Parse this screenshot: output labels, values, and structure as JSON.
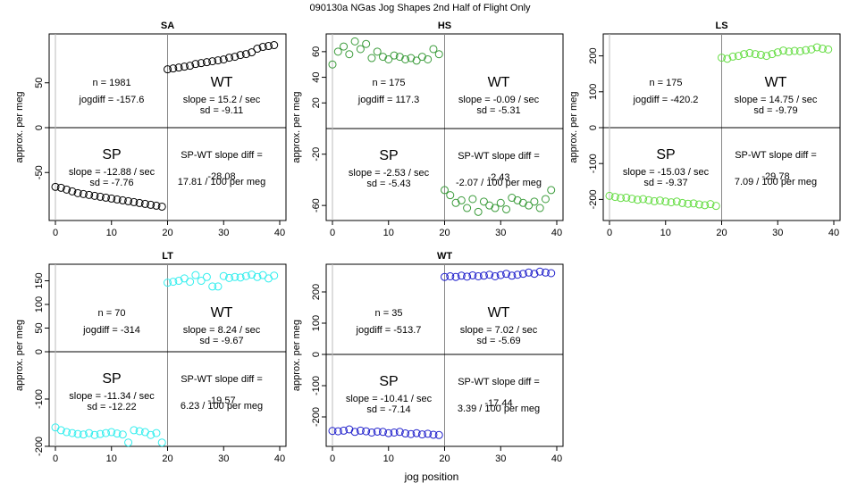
{
  "figure": {
    "title": "090130a   NGas Jog Shapes 2nd Half of Flight Only",
    "xlabel": "jog position"
  },
  "chart_data": [
    {
      "type": "scatter",
      "title": "SA",
      "ylabel": "approx. per meg",
      "color": "#000000",
      "xlim": [
        0,
        40
      ],
      "ylim": [
        -100,
        100
      ],
      "xticks": [
        0,
        10,
        20,
        30,
        40
      ],
      "yticks": [
        -50,
        0,
        50
      ],
      "sp_x": [
        0,
        1,
        2,
        3,
        4,
        5,
        6,
        7,
        8,
        9,
        10,
        11,
        12,
        13,
        14,
        15,
        16,
        17,
        18,
        19
      ],
      "sp_y": [
        -66,
        -67,
        -69,
        -71,
        -73,
        -74,
        -75,
        -76,
        -77,
        -78,
        -79,
        -80,
        -81,
        -82,
        -83,
        -84,
        -85,
        -86,
        -87,
        -88
      ],
      "wt_x": [
        20,
        21,
        22,
        23,
        24,
        25,
        26,
        27,
        28,
        29,
        30,
        31,
        32,
        33,
        34,
        35,
        36,
        37,
        38,
        39
      ],
      "wt_y": [
        65,
        66,
        67,
        68,
        69,
        71,
        72,
        73,
        74,
        75,
        76,
        78,
        79,
        81,
        82,
        84,
        88,
        90,
        91,
        92
      ],
      "annotations": {
        "n": "n = 1981",
        "jogdiff": "jogdiff = -157.6",
        "wt_label": "WT",
        "wt_slope": "slope = 15.2 / sec",
        "wt_sd": "sd = -9.11",
        "sp_label": "SP",
        "sp_slope": "slope = -12.88 / sec",
        "sp_sd": "sd = -7.76",
        "diff_title": "SP-WT slope diff =",
        "diff_value": "-28.08",
        "diff_permeg": "17.81 / 100 per meg"
      }
    },
    {
      "type": "scatter",
      "title": "HS",
      "ylabel": "approx. per meg",
      "color": "#3a9b3a",
      "xlim": [
        0,
        40
      ],
      "ylim": [
        -70,
        70
      ],
      "xticks": [
        0,
        10,
        20,
        30,
        40
      ],
      "yticks": [
        -60,
        -20,
        20,
        40,
        60
      ],
      "sp_x": [
        0,
        1,
        2,
        3,
        4,
        5,
        6,
        7,
        8,
        9,
        10,
        11,
        12,
        13,
        14,
        15,
        16,
        17,
        18,
        19
      ],
      "sp_y": [
        50,
        60,
        64,
        58,
        68,
        62,
        66,
        55,
        60,
        56,
        54,
        57,
        56,
        54,
        55,
        53,
        56,
        54,
        62,
        58
      ],
      "wt_x": [
        20,
        21,
        22,
        23,
        24,
        25,
        26,
        27,
        28,
        29,
        30,
        31,
        32,
        33,
        34,
        35,
        36,
        37,
        38,
        39
      ],
      "wt_y": [
        -48,
        -52,
        -58,
        -56,
        -62,
        -55,
        -65,
        -57,
        -60,
        -62,
        -58,
        -63,
        -54,
        -56,
        -58,
        -60,
        -57,
        -62,
        -55,
        -48
      ],
      "annotations": {
        "n": "n = 175",
        "jogdiff": "jogdiff = 117.3",
        "wt_label": "WT",
        "wt_slope": "slope = -0.09 / sec",
        "wt_sd": "sd = -5.31",
        "sp_label": "SP",
        "sp_slope": "slope = -2.53 / sec",
        "sp_sd": "sd = -5.43",
        "diff_title": "SP-WT slope diff =",
        "diff_value": "-2.43",
        "diff_permeg": "-2.07 / 100 per meg"
      }
    },
    {
      "type": "scatter",
      "title": "LS",
      "ylabel": "approx. per meg",
      "color": "#66dd44",
      "xlim": [
        0,
        40
      ],
      "ylim": [
        -250,
        250
      ],
      "xticks": [
        0,
        10,
        20,
        30,
        40
      ],
      "yticks": [
        -200,
        -100,
        0,
        100,
        200
      ],
      "sp_x": [
        0,
        1,
        2,
        3,
        4,
        5,
        6,
        7,
        8,
        9,
        10,
        11,
        12,
        13,
        14,
        15,
        16,
        17,
        18,
        19
      ],
      "sp_y": [
        -190,
        -193,
        -196,
        -195,
        -198,
        -201,
        -199,
        -202,
        -205,
        -203,
        -206,
        -208,
        -206,
        -210,
        -212,
        -211,
        -214,
        -216,
        -213,
        -218
      ],
      "wt_x": [
        20,
        21,
        22,
        23,
        24,
        25,
        26,
        27,
        28,
        29,
        30,
        31,
        32,
        33,
        34,
        35,
        36,
        37,
        38,
        39
      ],
      "wt_y": [
        195,
        192,
        198,
        200,
        205,
        208,
        205,
        203,
        200,
        205,
        210,
        215,
        212,
        214,
        213,
        216,
        218,
        224,
        220,
        218
      ],
      "annotations": {
        "n": "n = 175",
        "jogdiff": "jogdiff = -420.2",
        "wt_label": "WT",
        "wt_slope": "slope = 14.75 / sec",
        "wt_sd": "sd = -9.79",
        "sp_label": "SP",
        "sp_slope": "slope = -15.03 / sec",
        "sp_sd": "sd = -9.37",
        "diff_title": "SP-WT slope diff =",
        "diff_value": "-29.78",
        "diff_permeg": "7.09 / 100 per meg"
      }
    },
    {
      "type": "scatter",
      "title": "LT",
      "ylabel": "approx. per meg",
      "color": "#33eeee",
      "xlim": [
        0,
        40
      ],
      "ylim": [
        -200,
        170
      ],
      "xticks": [
        0,
        10,
        20,
        30,
        40
      ],
      "yticks": [
        -200,
        -100,
        0,
        50,
        100,
        150
      ],
      "sp_x": [
        0,
        1,
        2,
        3,
        4,
        5,
        6,
        7,
        8,
        9,
        10,
        11,
        12,
        13,
        14,
        15,
        16,
        17,
        18,
        19
      ],
      "sp_y": [
        -160,
        -166,
        -170,
        -172,
        -174,
        -175,
        -172,
        -176,
        -174,
        -172,
        -170,
        -173,
        -175,
        -192,
        -166,
        -168,
        -170,
        -176,
        -172,
        -192
      ],
      "wt_x": [
        20,
        21,
        22,
        23,
        24,
        25,
        26,
        27,
        28,
        29,
        30,
        31,
        32,
        33,
        34,
        35,
        36,
        37,
        38,
        39
      ],
      "wt_y": [
        146,
        148,
        150,
        155,
        148,
        162,
        150,
        158,
        138,
        138,
        160,
        156,
        158,
        157,
        160,
        163,
        158,
        162,
        155,
        161
      ],
      "annotations": {
        "n": "n = 70",
        "jogdiff": "jogdiff = -314",
        "wt_label": "WT",
        "wt_slope": "slope = 8.24 / sec",
        "wt_sd": "sd = -9.67",
        "sp_label": "SP",
        "sp_slope": "slope = -11.34 / sec",
        "sp_sd": "sd = -12.22",
        "diff_title": "SP-WT slope diff =",
        "diff_value": "-19.57",
        "diff_permeg": "6.23 / 100 per meg"
      }
    },
    {
      "type": "scatter",
      "title": "WT",
      "ylabel": "approx. per meg",
      "color": "#2222cc",
      "xlim": [
        0,
        40
      ],
      "ylim": [
        -280,
        280
      ],
      "xticks": [
        0,
        10,
        20,
        30,
        40
      ],
      "yticks": [
        -200,
        -100,
        0,
        100,
        200
      ],
      "sp_x": [
        0,
        1,
        2,
        3,
        4,
        5,
        6,
        7,
        8,
        9,
        10,
        11,
        12,
        13,
        14,
        15,
        16,
        17,
        18,
        19
      ],
      "sp_y": [
        -245,
        -246,
        -244,
        -240,
        -248,
        -244,
        -246,
        -250,
        -247,
        -248,
        -252,
        -250,
        -248,
        -253,
        -255,
        -252,
        -256,
        -254,
        -257,
        -258
      ],
      "wt_x": [
        20,
        21,
        22,
        23,
        24,
        25,
        26,
        27,
        28,
        29,
        30,
        31,
        32,
        33,
        34,
        35,
        36,
        37,
        38,
        39
      ],
      "wt_y": [
        248,
        250,
        248,
        252,
        249,
        253,
        250,
        252,
        255,
        250,
        254,
        258,
        252,
        255,
        258,
        262,
        258,
        265,
        262,
        260
      ],
      "annotations": {
        "n": "n = 35",
        "jogdiff": "jogdiff = -513.7",
        "wt_label": "WT",
        "wt_slope": "slope = 7.02 / sec",
        "wt_sd": "sd = -5.69",
        "sp_label": "SP",
        "sp_slope": "slope = -10.41 / sec",
        "sp_sd": "sd = -7.14",
        "diff_title": "SP-WT slope diff =",
        "diff_value": "-17.44",
        "diff_permeg": "3.39 / 100 per meg"
      }
    }
  ]
}
